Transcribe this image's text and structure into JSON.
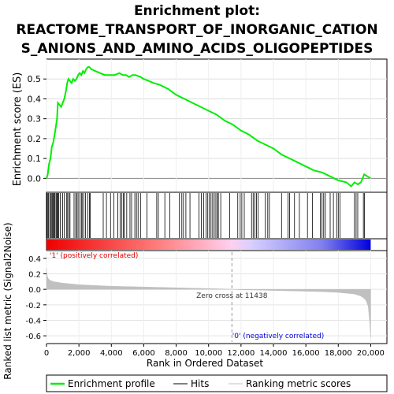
{
  "chart_data": {
    "type": "line",
    "title_lines": [
      "Enrichment plot:",
      "REACTOME_TRANSPORT_OF_INORGANIC_CATION",
      "S_ANIONS_AND_AMINO_ACIDS_OLIGOPEPTIDES"
    ],
    "top_panel": {
      "ylabel": "Enrichment score (ES)",
      "ylim": [
        -0.07,
        0.6
      ],
      "yticks": [
        0.0,
        0.1,
        0.2,
        0.3,
        0.4,
        0.5
      ],
      "ytick_labels": [
        "0.0",
        "0.1",
        "0.2",
        "0.3",
        "0.4",
        "0.5"
      ],
      "series": [
        {
          "name": "Enrichment profile",
          "color": "#00ee00",
          "x": [
            0,
            80,
            150,
            250,
            330,
            420,
            500,
            580,
            650,
            700,
            800,
            900,
            1000,
            1100,
            1200,
            1280,
            1350,
            1450,
            1550,
            1650,
            1750,
            1850,
            1950,
            2050,
            2150,
            2250,
            2350,
            2450,
            2550,
            2650,
            2750,
            3000,
            3300,
            3600,
            3900,
            4200,
            4500,
            4700,
            4900,
            5100,
            5300,
            5500,
            5800,
            6000,
            6300,
            6600,
            7000,
            7500,
            8000,
            8500,
            9000,
            9500,
            10000,
            10500,
            11000,
            11500,
            12000,
            12500,
            13000,
            13500,
            14000,
            14500,
            15000,
            15500,
            16000,
            16500,
            17000,
            17500,
            18000,
            18500,
            18800,
            19000,
            19200,
            19400,
            19600,
            19800,
            20000
          ],
          "y": [
            0.0,
            0.02,
            0.07,
            0.1,
            0.16,
            0.18,
            0.22,
            0.26,
            0.3,
            0.38,
            0.37,
            0.36,
            0.38,
            0.4,
            0.44,
            0.48,
            0.5,
            0.49,
            0.48,
            0.5,
            0.49,
            0.5,
            0.52,
            0.53,
            0.52,
            0.54,
            0.53,
            0.55,
            0.56,
            0.56,
            0.55,
            0.54,
            0.53,
            0.52,
            0.52,
            0.52,
            0.53,
            0.52,
            0.52,
            0.51,
            0.52,
            0.52,
            0.51,
            0.5,
            0.49,
            0.48,
            0.47,
            0.45,
            0.42,
            0.4,
            0.38,
            0.36,
            0.34,
            0.32,
            0.29,
            0.27,
            0.24,
            0.22,
            0.19,
            0.17,
            0.15,
            0.12,
            0.1,
            0.08,
            0.06,
            0.04,
            0.03,
            0.01,
            -0.01,
            -0.02,
            -0.04,
            -0.02,
            -0.03,
            -0.02,
            0.02,
            0.01,
            0.0
          ]
        }
      ]
    },
    "hits_panel": {
      "hit_color": "#000000",
      "hits": [
        30,
        60,
        120,
        200,
        270,
        330,
        380,
        430,
        480,
        530,
        600,
        660,
        700,
        760,
        850,
        1000,
        1100,
        1230,
        1300,
        1380,
        1450,
        1700,
        1800,
        1880,
        1950,
        2050,
        2150,
        2200,
        2300,
        2400,
        2550,
        2650,
        2700,
        3500,
        3700,
        3950,
        4150,
        4400,
        4550,
        4650,
        4750,
        4800,
        4950,
        5150,
        5250,
        5450,
        5550,
        5650,
        5800,
        6200,
        6800,
        6900,
        7300,
        7600,
        8200,
        8350,
        8450,
        8600,
        8850,
        9400,
        9550,
        9700,
        9850,
        9950,
        10050,
        10150,
        10250,
        10350,
        10450,
        10550,
        10600,
        10750,
        11300,
        11800,
        11950,
        12050,
        12200,
        12650,
        12750,
        12850,
        12950,
        13050,
        13500,
        13650,
        13750,
        14500,
        14900,
        15000,
        15300,
        15600,
        16100,
        16400,
        16900,
        17000,
        17100,
        17200,
        17500,
        17700,
        17900,
        18000,
        18100,
        19000,
        19100,
        19200,
        19550,
        19620
      ]
    },
    "ranked_panel": {
      "ylabel": "Ranked list metric (Signal2Noise)",
      "ylim": [
        -0.7,
        0.5
      ],
      "yticks": [
        -0.6,
        -0.4,
        -0.2,
        0.0,
        0.2,
        0.4
      ],
      "ytick_labels": [
        "-0.6",
        "-0.4",
        "-0.2",
        "0.0",
        "0.2",
        "0.4"
      ],
      "fill_color": "#c0c0c0",
      "x": [
        0,
        20,
        50,
        100,
        200,
        400,
        700,
        1000,
        1500,
        2000,
        3000,
        4000,
        5000,
        6000,
        7000,
        8000,
        9000,
        10000,
        11000,
        11438,
        12000,
        13000,
        14000,
        15000,
        16000,
        17000,
        17500,
        18000,
        18500,
        19000,
        19300,
        19500,
        19700,
        19850,
        19950,
        20000
      ],
      "y": [
        0.27,
        0.22,
        0.17,
        0.14,
        0.12,
        0.1,
        0.09,
        0.08,
        0.07,
        0.06,
        0.05,
        0.04,
        0.035,
        0.03,
        0.025,
        0.02,
        0.015,
        0.01,
        0.005,
        0.0,
        -0.005,
        -0.01,
        -0.015,
        -0.02,
        -0.025,
        -0.03,
        -0.035,
        -0.04,
        -0.05,
        -0.06,
        -0.08,
        -0.1,
        -0.14,
        -0.22,
        -0.45,
        -0.62
      ],
      "positive_label": "'1' (positively correlated)",
      "positive_label_color": "#dd0000",
      "negative_label": "'0' (negatively correlated)",
      "negative_label_color": "#0000dd",
      "zero_cross_label": "Zero cross at 11438",
      "zero_cross_x": 11438
    },
    "xlabel": "Rank in Ordered Dataset",
    "xlim": [
      0,
      21000
    ],
    "xticks": [
      0,
      2000,
      4000,
      6000,
      8000,
      10000,
      12000,
      14000,
      16000,
      18000,
      20000
    ],
    "xtick_labels": [
      "0",
      "2,000",
      "4,000",
      "6,000",
      "8,000",
      "10,000",
      "12,000",
      "14,000",
      "16,000",
      "18,000",
      "20,000"
    ],
    "grid": true,
    "legend": {
      "placement": "bottom",
      "entries": [
        {
          "label": "Enrichment profile",
          "color": "#00ee00",
          "style": "line-thick"
        },
        {
          "label": "Hits",
          "color": "#000000",
          "style": "line-thin"
        },
        {
          "label": "Ranking metric scores",
          "color": "#c0c0c0",
          "style": "line-thin"
        }
      ]
    }
  }
}
